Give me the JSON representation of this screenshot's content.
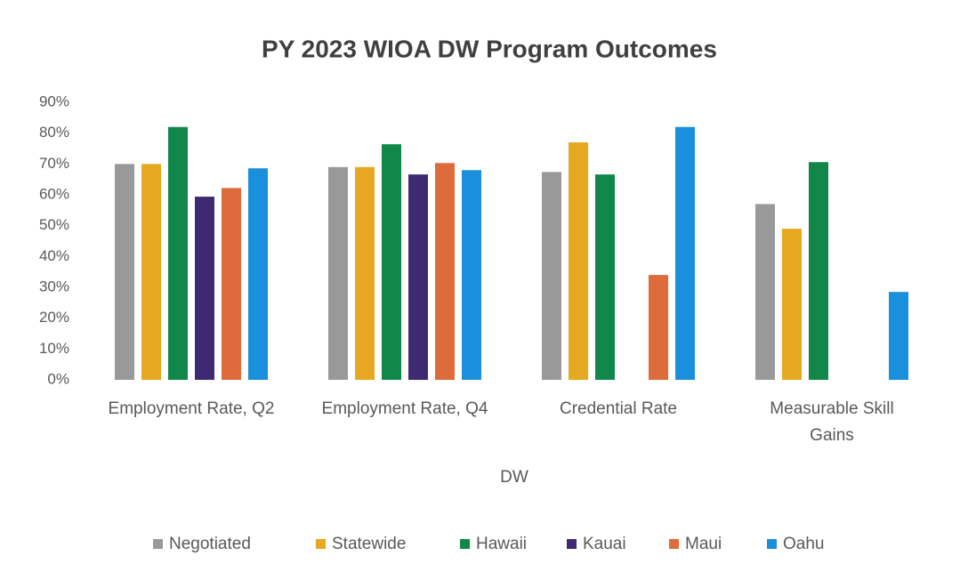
{
  "chart_data": {
    "type": "bar",
    "title": "PY 2023 WIOA DW Program Outcomes",
    "x_label": "DW",
    "categories": [
      "Employment Rate, Q2",
      "Employment Rate, Q4",
      "Credential Rate",
      "Measurable Skill Gains"
    ],
    "series": [
      {
        "name": "Negotiated",
        "color": "#999999",
        "values": [
          70,
          69,
          67.4,
          57
        ]
      },
      {
        "name": "Statewide",
        "color": "#e6a820",
        "values": [
          70,
          69,
          77,
          49
        ]
      },
      {
        "name": "Hawaii",
        "color": "#12874a",
        "values": [
          82,
          76.4,
          66.6,
          70.6
        ]
      },
      {
        "name": "Kauai",
        "color": "#3d2a73",
        "values": [
          59.4,
          66.6,
          null,
          null
        ]
      },
      {
        "name": "Maui",
        "color": "#dd6b3c",
        "values": [
          62.2,
          70.3,
          34,
          null
        ]
      },
      {
        "name": "Oahu",
        "color": "#1a8fdc",
        "values": [
          68.6,
          68,
          82,
          28.5
        ]
      }
    ],
    "ylim": [
      0,
      90
    ],
    "yticks": [
      {
        "value": 0,
        "label": "0%"
      },
      {
        "value": 10,
        "label": "10%"
      },
      {
        "value": 20,
        "label": "20%"
      },
      {
        "value": 30,
        "label": "30%"
      },
      {
        "value": 40,
        "label": "40%"
      },
      {
        "value": 50,
        "label": "50%"
      },
      {
        "value": 60,
        "label": "60%"
      },
      {
        "value": 70,
        "label": "70%"
      },
      {
        "value": 80,
        "label": "80%"
      },
      {
        "value": 90,
        "label": "90%"
      }
    ],
    "grid": false,
    "legend": "bottom"
  }
}
